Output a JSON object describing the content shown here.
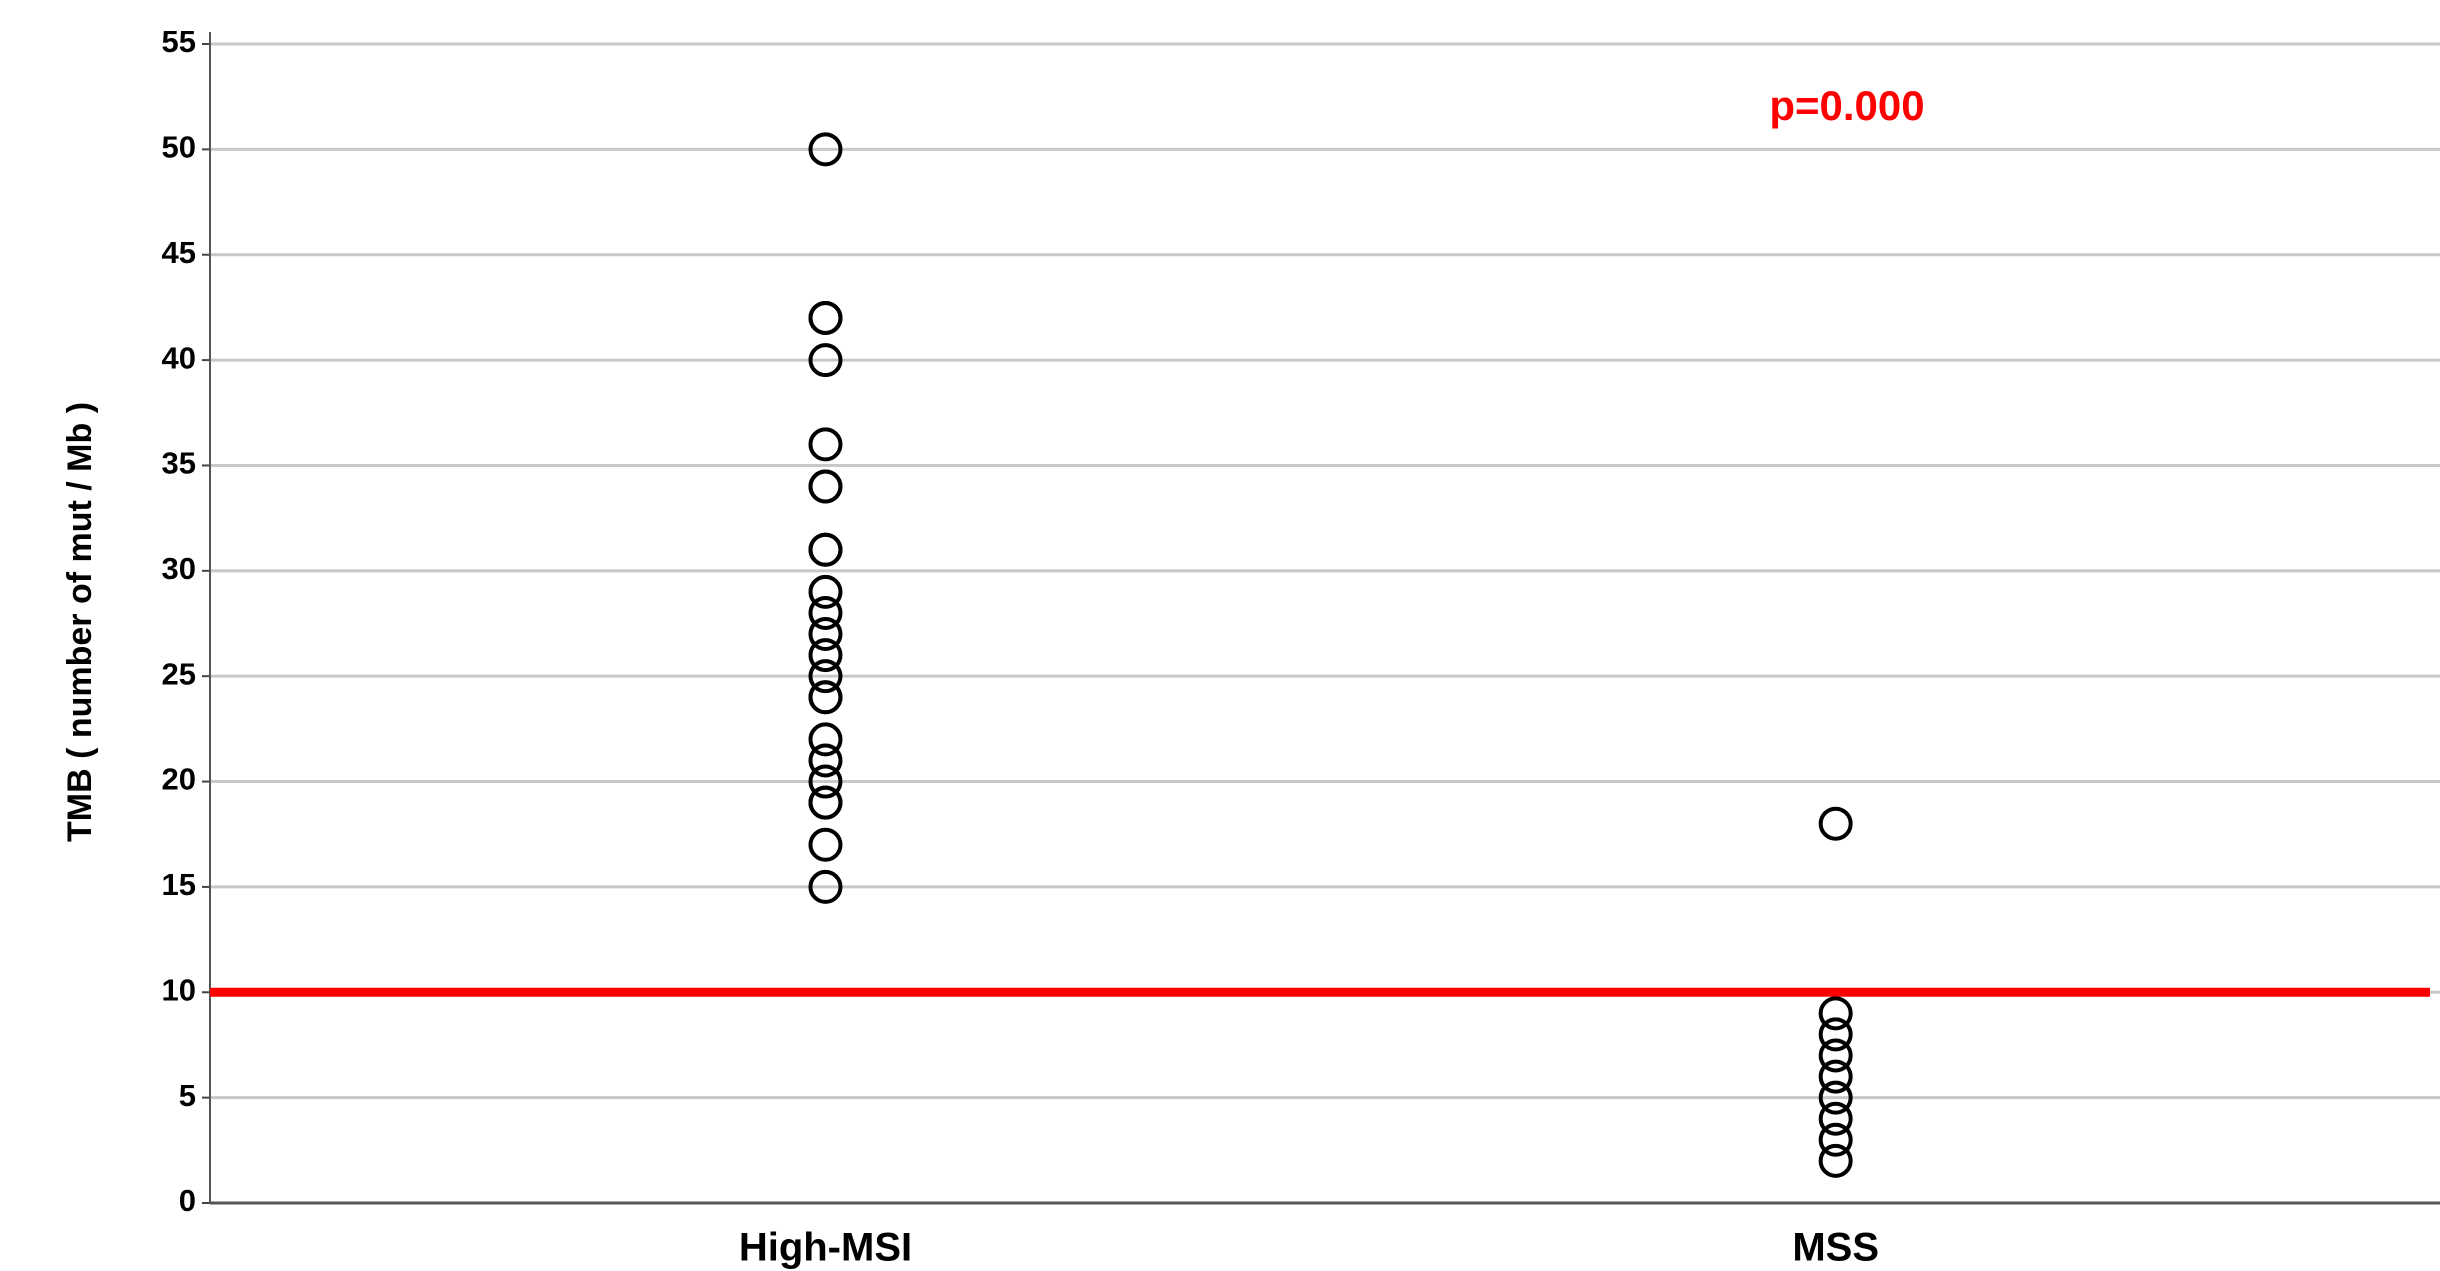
{
  "chart_data": {
    "type": "scatter",
    "y_label": "TMB ( number of mut / Mb )",
    "categories": [
      "High-MSI",
      "MSS"
    ],
    "values": [
      [
        50,
        42,
        42,
        40,
        36,
        34,
        34,
        31,
        31,
        29,
        28,
        27,
        26,
        25,
        24,
        24,
        22,
        21,
        20,
        19,
        19,
        17,
        15
      ],
      [
        18,
        9,
        8,
        7,
        6,
        5,
        4,
        3,
        2
      ]
    ],
    "marker_color": "#000000",
    "reference_line": {
      "value": 10,
      "color": "#ff0000"
    },
    "annotation": {
      "text": "p=0.000",
      "color": "#ff0000"
    },
    "ylim": [
      0,
      55
    ],
    "yticks": [
      0,
      5,
      10,
      15,
      20,
      25,
      30,
      35,
      40,
      45,
      50,
      55
    ],
    "grid": true
  }
}
